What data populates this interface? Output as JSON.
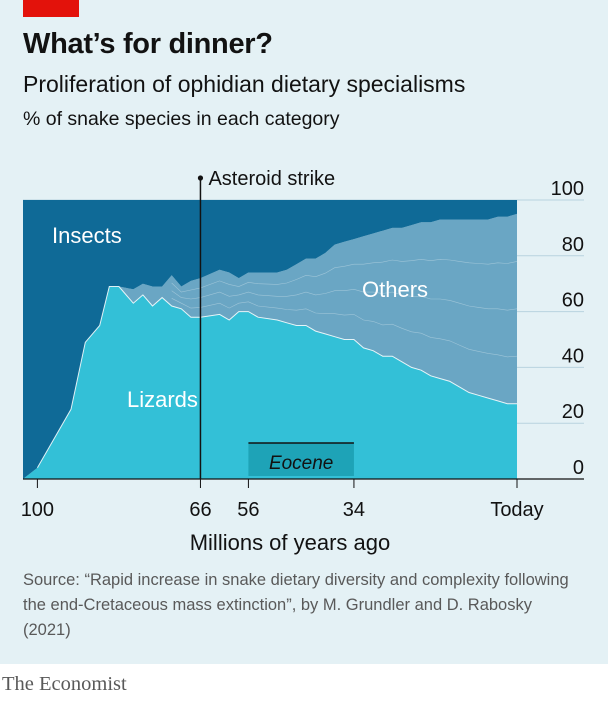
{
  "header": {
    "title": "What’s for dinner?",
    "subtitle": "Proliferation of ophidian dietary specialisms",
    "unit": "% of snake species in each category"
  },
  "chart_data": {
    "type": "area",
    "stacking": "percent",
    "x_direction": "reversed",
    "xlabel": "Millions of years ago",
    "x_ticks": [
      {
        "value": 100,
        "label": "100"
      },
      {
        "value": 66,
        "label": "66"
      },
      {
        "value": 56,
        "label": "56"
      },
      {
        "value": 34,
        "label": "34"
      },
      {
        "value": 0,
        "label": "Today"
      }
    ],
    "xlim": [
      103,
      0
    ],
    "ylim": [
      0,
      100
    ],
    "y_ticks": [
      0,
      20,
      40,
      60,
      80,
      100
    ],
    "y_axis_side": "right",
    "grid": true,
    "x": [
      103,
      100,
      93,
      90,
      87,
      85,
      83,
      80,
      78,
      76,
      74,
      72,
      70,
      68,
      66,
      62,
      60,
      58,
      56,
      54,
      50,
      48,
      46,
      44,
      42,
      40,
      38,
      36,
      34,
      32,
      30,
      28,
      26,
      24,
      22,
      20,
      18,
      16,
      14,
      12,
      10,
      8,
      6,
      4,
      2,
      0
    ],
    "series": [
      {
        "name": "Lizards",
        "values": [
          0,
          4,
          25,
          49,
          55,
          69,
          69,
          63,
          66,
          62,
          65,
          62,
          61,
          58,
          58,
          59,
          57,
          60,
          60,
          58,
          57,
          56,
          55,
          55,
          53,
          52,
          51,
          50,
          50,
          47,
          46,
          44,
          44,
          42,
          40,
          39,
          37,
          36,
          35,
          33,
          31,
          30,
          29,
          28,
          27,
          27
        ]
      },
      {
        "name": "Others",
        "values": [
          0,
          0,
          0,
          0,
          0,
          0,
          0,
          5,
          4,
          7,
          4,
          11,
          8,
          13,
          14,
          16,
          17,
          12,
          14,
          16,
          17,
          19,
          22,
          24,
          26,
          29,
          33,
          35,
          36,
          40,
          42,
          45,
          46,
          48,
          51,
          53,
          55,
          57,
          58,
          60,
          62,
          63,
          64,
          66,
          67,
          68
        ]
      },
      {
        "name": "Insects",
        "values": [
          100,
          96,
          75,
          51,
          45,
          31,
          31,
          32,
          30,
          31,
          31,
          27,
          31,
          29,
          28,
          25,
          26,
          28,
          26,
          26,
          26,
          25,
          23,
          21,
          21,
          19,
          16,
          15,
          14,
          13,
          12,
          11,
          10,
          10,
          9,
          8,
          8,
          7,
          7,
          7,
          7,
          7,
          7,
          6,
          6,
          5
        ]
      }
    ],
    "colors": {
      "Insects": "#0f6a97",
      "Others": "#6aa6c4",
      "Lizards": "#33c0d7"
    },
    "annotations": [
      {
        "text": "Asteroid strike",
        "x": 66
      },
      {
        "text": "Eocene",
        "x_range": [
          56,
          34
        ]
      }
    ]
  },
  "source": "Source: “Rapid increase in snake dietary diversity and complexity following the end-Cretaceous mass extinction”, by M. Grundler and D. Rabosky (2021)",
  "brand": "The Economist"
}
